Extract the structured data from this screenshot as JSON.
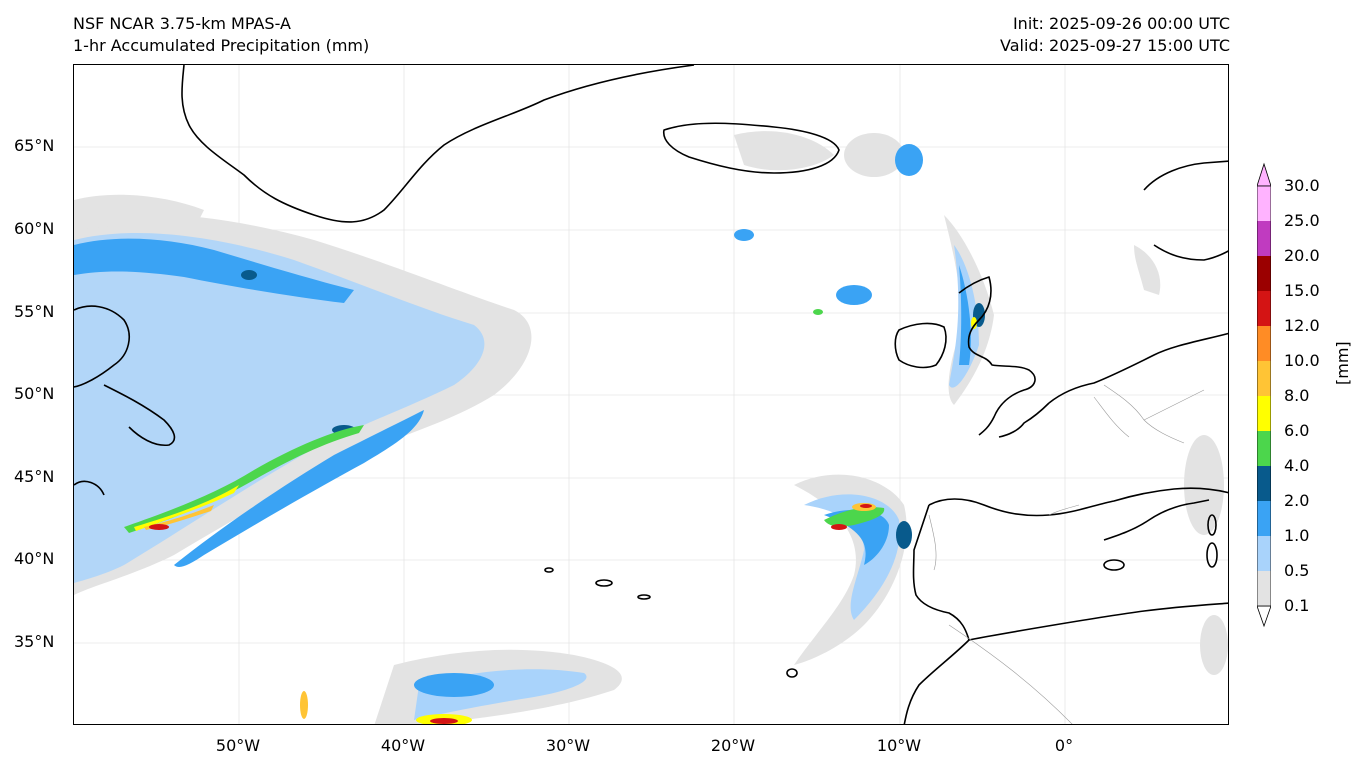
{
  "header": {
    "model_name": "NSF NCAR 3.75-km MPAS-A",
    "field_name": "1-hr Accumulated Precipitation (mm)",
    "init_time": "Init: 2025-09-26 00:00 UTC",
    "valid_time": "Valid: 2025-09-27 15:00 UTC"
  },
  "map": {
    "latitude_ticks": [
      {
        "label": "65°N",
        "lat": 65
      },
      {
        "label": "60°N",
        "lat": 60
      },
      {
        "label": "55°N",
        "lat": 55
      },
      {
        "label": "50°N",
        "lat": 50
      },
      {
        "label": "45°N",
        "lat": 45
      },
      {
        "label": "40°N",
        "lat": 40
      },
      {
        "label": "35°N",
        "lat": 35
      }
    ],
    "longitude_ticks": [
      {
        "label": "50°W",
        "lon": -50
      },
      {
        "label": "40°W",
        "lon": -40
      },
      {
        "label": "30°W",
        "lon": -30
      },
      {
        "label": "20°W",
        "lon": -20
      },
      {
        "label": "10°W",
        "lon": -10
      },
      {
        "label": "0°",
        "lon": 0
      }
    ],
    "extent": {
      "lon_min": -60,
      "lon_max": 10,
      "lat_min": 30,
      "lat_max": 70
    }
  },
  "colorbar": {
    "unit": "[mm]",
    "levels": [
      "0.1",
      "0.5",
      "1.0",
      "2.0",
      "4.0",
      "6.0",
      "8.0",
      "10.0",
      "12.0",
      "15.0",
      "20.0",
      "25.0",
      "30.0"
    ],
    "colors": [
      "#e3e3e3",
      "#a9d3fb",
      "#3aa3f4",
      "#085a8c",
      "#4cd64c",
      "#ffff00",
      "#ffc435",
      "#ff8c25",
      "#d41414",
      "#9b0000",
      "#c03bc0",
      "#ffb3ff"
    ]
  }
}
